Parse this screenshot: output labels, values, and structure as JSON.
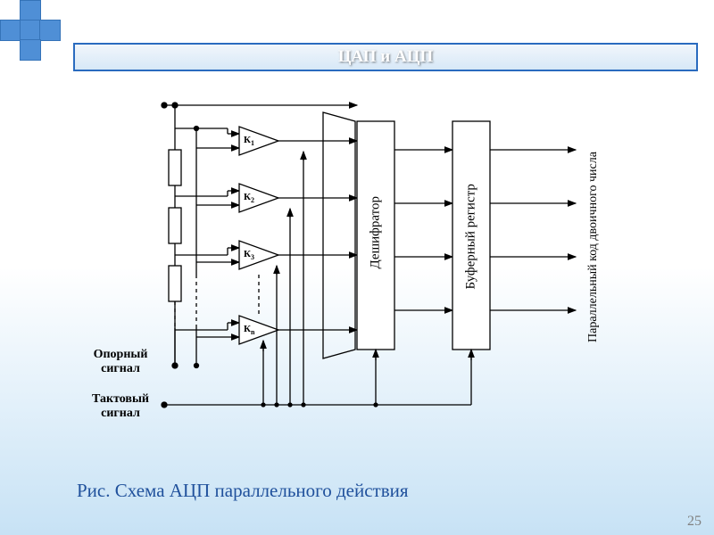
{
  "slide": {
    "title": "ЦАП и АЦП",
    "caption": "Рис. Схема АЦП параллельного действия",
    "page_number": "25",
    "title_color": "#ffffff",
    "title_bar_border": "#2a6bbf",
    "corner_square_color": "#4f8fd6",
    "caption_color": "#20519c"
  },
  "labels": {
    "ref_signal": "Опорный\nсигнал",
    "clock_signal": "Тактовый\nсигнал",
    "decoder": "Дешифратор",
    "buffer": "Буферный регистр",
    "output": "Параллельный код двоичного числа"
  },
  "comparators": {
    "names": [
      "К₁",
      "К₂",
      "К₃",
      "Кₙ"
    ],
    "count": 4
  },
  "diagram_style": {
    "stroke": "#000000",
    "stroke_width": 1.3,
    "arrow_size": 8,
    "resistor_w": 14,
    "resistor_h": 40,
    "triangle_w": 44,
    "triangle_h": 32,
    "block_w": 42,
    "block_h": 254,
    "dash_pattern": "4 4"
  }
}
